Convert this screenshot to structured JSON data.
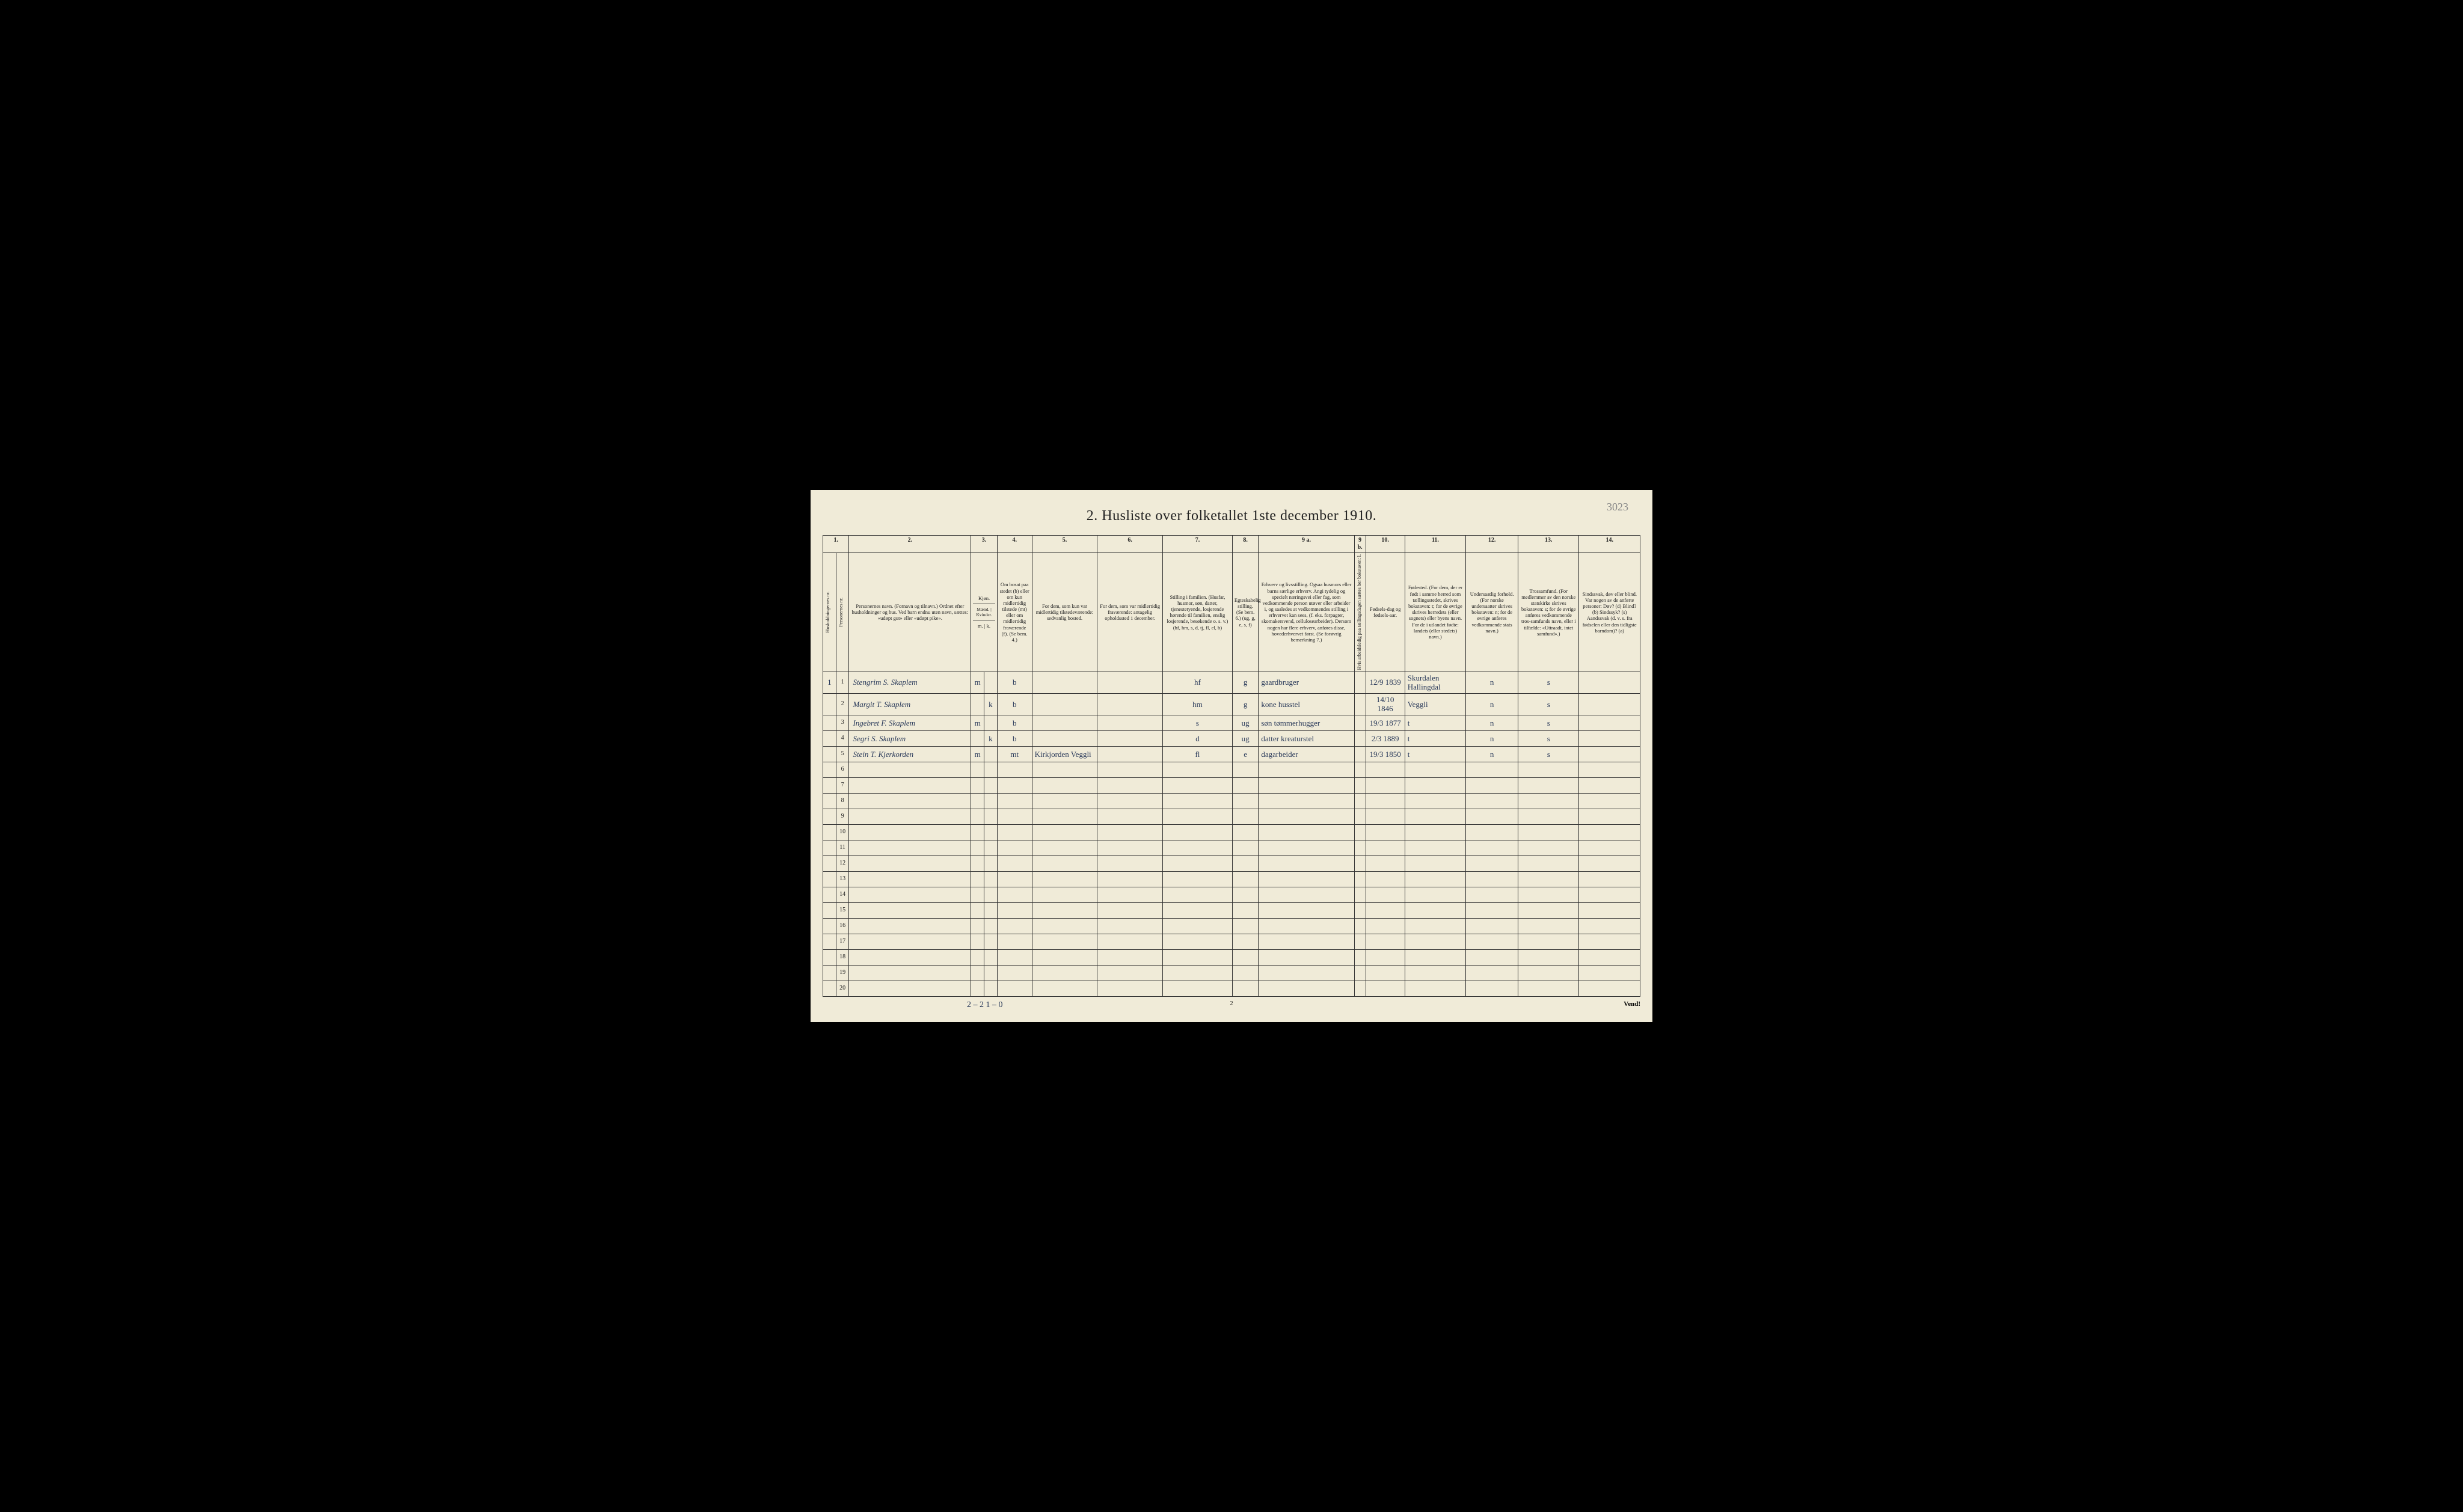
{
  "page_corner": "3023",
  "title": "2.  Husliste over folketallet 1ste december 1910.",
  "page_num_bottom": "2",
  "vend": "Vend!",
  "footer_handwritten": "2 – 2   1 – 0",
  "columns": {
    "nums": [
      "1.",
      "2.",
      "3.",
      "4.",
      "5.",
      "6.",
      "7.",
      "8.",
      "9 a.",
      "9 b.",
      "10.",
      "11.",
      "12.",
      "13.",
      "14."
    ],
    "h1_vert": "Husholdningernes nr.",
    "h1b_vert": "Personernes nr.",
    "h2": "Personernes navn.\n(Fornavn og tilnavn.)\nOrdnet efter husholdninger og hus.\nVed barn endnu uten navn, sættes: «udøpt gut» eller «udøpt pike».",
    "h3_top": "Kjøn.",
    "h3_sub": "Mænd. | Kvinder.",
    "h3_bot": "m. | k.",
    "h4": "Om bosat paa stedet (b) eller om kun midlertidig tilstede (mt) eller om midlertidig fraværende (f).\n(Se bem. 4.)",
    "h5": "For dem, som kun var midlertidig tilstedeværende:\nsedvanlig bosted.",
    "h6": "For dem, som var midlertidig fraværende:\nantagelig opholdssted 1 december.",
    "h7": "Stilling i familien.\n(Husfar, husmor, søn, datter, tjenestetyende, losjerende hørende til familien, enslig losjerende, besøkende o. s. v.)\n(hf, hm, s, d, tj, fl, el, b)",
    "h8": "Egteskabelig stilling.\n(Se bem. 6.)\n(ug, g, e, s, f)",
    "h9a": "Erhverv og livsstilling.\nOgsaa husmors eller barns særlige erhverv. Angi tydelig og specielt næringsvei eller fag, som vedkommende person utøver eller arbeider i, og saaledes at vedkommendes stilling i erhvervet kan sees, (f. eks. forpagter, skomakersvend, cellulosearbeider). Dersom nogen har flere erhverv, anføres disse, hovederhvervet først.\n(Se forøvrig bemerkning 7.)",
    "h9b_vert": "Hvis arbeidsledig paa tællingsdagen sættes her bokstaven: l.",
    "h10": "Fødsels-dag og fødsels-aar.",
    "h11": "Fødested.\n(For dem, der er født i samme herred som tællingsstedet, skrives bokstaven: t; for de øvrige skrives herredets (eller sognets) eller byens navn. For de i utlandet fødte: landets (eller stedets) navn.)",
    "h12": "Undersaatlig forhold.\n(For norske undersaatter skrives bokstaven: n; for de øvrige anføres vedkommende stats navn.)",
    "h13": "Trossamfund.\n(For medlemmer av den norske statskirke skrives bokstaven: s; for de øvrige anføres vedkommende tros-samfunds navn, eller i tilfælde: «Uttraadt, intet samfund».)",
    "h14": "Sindssvak, døv eller blind.\nVar nogen av de anførte personer:\nDøv? (d)\nBlind? (b)\nSindssyk? (s)\nAandssvak (d. v. s. fra fødselen eller den tidligste barndom)? (a)"
  },
  "rows": [
    {
      "hh": "1",
      "pn": "1",
      "name": "Stengrim S. Skaplem",
      "m": "m",
      "k": "",
      "b": "b",
      "c5": "",
      "c6": "",
      "c7": "hf",
      "c8": "g",
      "c9a": "gaardbruger",
      "c9b": "",
      "c10": "12/9 1839",
      "c11": "Skurdalen Hallingdal",
      "c12": "n",
      "c13": "s",
      "c14": ""
    },
    {
      "hh": "",
      "pn": "2",
      "name": "Margit T. Skaplem",
      "m": "",
      "k": "k",
      "b": "b",
      "c5": "",
      "c6": "",
      "c7": "hm",
      "c8": "g",
      "c9a": "kone husstel",
      "c9b": "",
      "c10": "14/10 1846",
      "c11": "Veggli",
      "c12": "n",
      "c13": "s",
      "c14": ""
    },
    {
      "hh": "",
      "pn": "3",
      "name": "Ingebret F. Skaplem",
      "m": "m",
      "k": "",
      "b": "b",
      "c5": "",
      "c6": "",
      "c7": "s",
      "c8": "ug",
      "c9a": "søn tømmerhugger",
      "c9b": "",
      "c10": "19/3 1877",
      "c11": "t",
      "c12": "n",
      "c13": "s",
      "c14": ""
    },
    {
      "hh": "",
      "pn": "4",
      "name": "Segri S. Skaplem",
      "m": "",
      "k": "k",
      "b": "b",
      "c5": "",
      "c6": "",
      "c7": "d",
      "c8": "ug",
      "c9a": "datter kreaturstel",
      "c9b": "",
      "c10": "2/3 1889",
      "c11": "t",
      "c12": "n",
      "c13": "s",
      "c14": ""
    },
    {
      "hh": "",
      "pn": "5",
      "name": "Stein T. Kjerkorden",
      "m": "m",
      "k": "",
      "b": "mt",
      "c5": "Kirkjorden Veggli",
      "c6": "",
      "c7": "fl",
      "c8": "e",
      "c9a": "dagarbeider",
      "c9b": "",
      "c10": "19/3 1850",
      "c11": "t",
      "c12": "n",
      "c13": "s",
      "c14": ""
    }
  ],
  "empty_row_count": 15,
  "colors": {
    "paper": "#f0ebd8",
    "ink": "#222222",
    "handwriting": "#2a3a5a",
    "border": "#333333",
    "background": "#000000"
  }
}
